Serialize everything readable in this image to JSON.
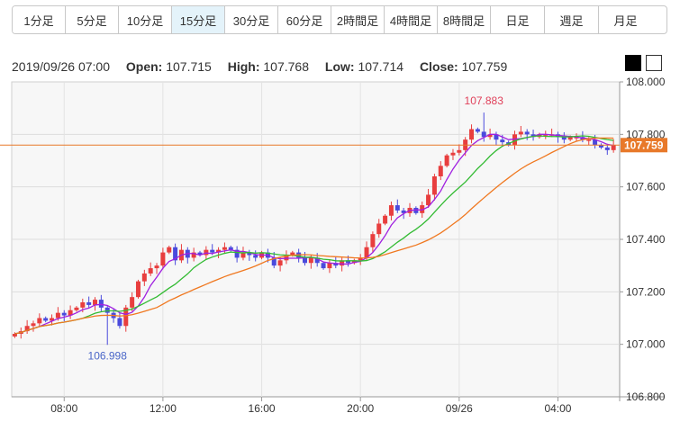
{
  "tabs": [
    {
      "label": "1分足",
      "active": false
    },
    {
      "label": "5分足",
      "active": false
    },
    {
      "label": "10分足",
      "active": false
    },
    {
      "label": "15分足",
      "active": true
    },
    {
      "label": "30分足",
      "active": false
    },
    {
      "label": "60分足",
      "active": false
    },
    {
      "label": "2時間足",
      "active": false
    },
    {
      "label": "4時間足",
      "active": false
    },
    {
      "label": "8時間足",
      "active": false
    },
    {
      "label": "日足",
      "active": false
    },
    {
      "label": "週足",
      "active": false
    },
    {
      "label": "月足",
      "active": false
    }
  ],
  "ohlc": {
    "datetime": "2019/09/26 07:00",
    "open_label": "Open:",
    "open": "107.715",
    "high_label": "High:",
    "high": "107.768",
    "low_label": "Low:",
    "low": "107.714",
    "close_label": "Close:",
    "close": "107.759"
  },
  "theme": {
    "black": "black",
    "white": "white"
  },
  "chart_data": {
    "type": "candlestick",
    "ylim": [
      106.8,
      108.0
    ],
    "y_ticks": [
      "108.000",
      "107.800",
      "107.600",
      "107.400",
      "107.200",
      "107.000",
      "106.800"
    ],
    "x_ticks": [
      {
        "label": "08:00",
        "index": 8
      },
      {
        "label": "12:00",
        "index": 24
      },
      {
        "label": "16:00",
        "index": 40
      },
      {
        "label": "20:00",
        "index": 56
      },
      {
        "label": "09/26",
        "index": 72
      },
      {
        "label": "04:00",
        "index": 88
      }
    ],
    "current_price": {
      "value": 107.759,
      "label": "107.759"
    },
    "annotations": [
      {
        "text": "107.883",
        "value": 107.883,
        "index": 76,
        "position": "above",
        "color": "#e0405a"
      },
      {
        "text": "106.998",
        "value": 106.998,
        "index": 15,
        "position": "below",
        "color": "#4a66c8"
      }
    ],
    "colors": {
      "up": "#e83e3e",
      "down": "#4a4adc",
      "ma_short": "#a020e0",
      "ma_mid": "#33bb33",
      "ma_long": "#f07820",
      "price_line": "#e8792a"
    },
    "moving_averages": [
      "ma_short",
      "ma_mid",
      "ma_long"
    ],
    "close_series": [
      107.04,
      107.05,
      107.07,
      107.08,
      107.1,
      107.09,
      107.1,
      107.12,
      107.11,
      107.13,
      107.14,
      107.16,
      107.15,
      107.17,
      107.14,
      107.12,
      107.1,
      107.07,
      107.14,
      107.18,
      107.24,
      107.27,
      107.29,
      107.3,
      107.35,
      107.37,
      107.32,
      107.36,
      107.33,
      107.35,
      107.34,
      107.36,
      107.35,
      107.36,
      107.37,
      107.36,
      107.33,
      107.35,
      107.34,
      107.33,
      107.35,
      107.33,
      107.3,
      107.32,
      107.34,
      107.35,
      107.33,
      107.31,
      107.33,
      107.31,
      107.29,
      107.31,
      107.3,
      107.32,
      107.31,
      107.32,
      107.33,
      107.37,
      107.42,
      107.46,
      107.49,
      107.53,
      107.51,
      107.5,
      107.52,
      107.5,
      107.53,
      107.57,
      107.64,
      107.68,
      107.72,
      107.73,
      107.74,
      107.78,
      107.82,
      107.81,
      107.79,
      107.8,
      107.78,
      107.77,
      107.76,
      107.8,
      107.81,
      107.8,
      107.79,
      107.8,
      107.8,
      107.8,
      107.79,
      107.78,
      107.79,
      107.79,
      107.78,
      107.78,
      107.76,
      107.75,
      107.74,
      107.76
    ]
  }
}
